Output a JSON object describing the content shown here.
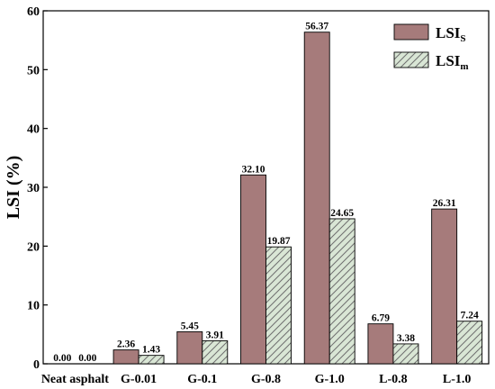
{
  "chart_data": {
    "type": "bar",
    "title": "",
    "xlabel": "",
    "ylabel": "LSI (%)",
    "ylim": [
      0,
      60
    ],
    "yticks": [
      0,
      10,
      20,
      30,
      40,
      50,
      60
    ],
    "grid": false,
    "legend_position": "top-right",
    "categories": [
      "Neat asphalt",
      "G-0.01",
      "G-0.1",
      "G-0.8",
      "G-1.0",
      "L-0.8",
      "L-1.0"
    ],
    "series": [
      {
        "name": "LSI",
        "name_subscript": "S",
        "fill": "solid",
        "color": "#a67b7b",
        "values": [
          0.0,
          2.36,
          5.45,
          32.1,
          56.37,
          6.79,
          26.31
        ],
        "labels": [
          "0.00",
          "2.36",
          "5.45",
          "32.10",
          "56.37",
          "6.79",
          "26.31"
        ]
      },
      {
        "name": "LSI",
        "name_subscript": "m",
        "fill": "hatched",
        "color": "#d9e6d5",
        "values": [
          0.0,
          1.43,
          3.91,
          19.87,
          24.65,
          3.38,
          7.24
        ],
        "labels": [
          "0.00",
          "1.43",
          "3.91",
          "19.87",
          "24.65",
          "3.38",
          "7.24"
        ]
      }
    ]
  }
}
